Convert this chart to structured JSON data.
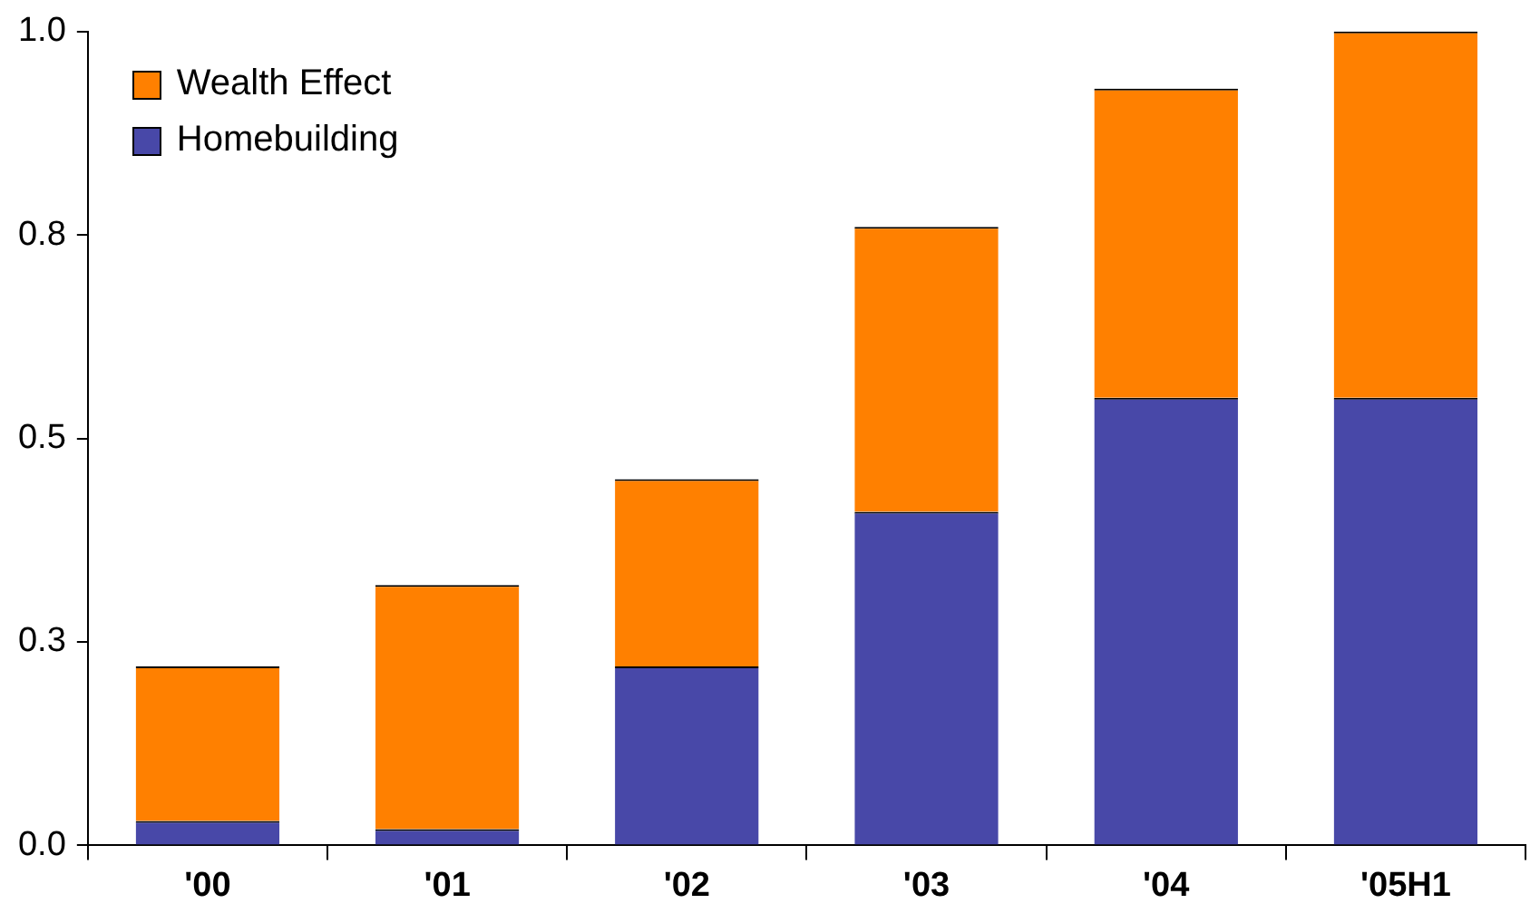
{
  "chart_data": {
    "type": "bar",
    "stacked": true,
    "categories": [
      "'00",
      "'01",
      "'02",
      "'03",
      "'04",
      "'05H1"
    ],
    "series": [
      {
        "name": "Homebuilding",
        "color": "#4848a8",
        "values": [
          0.03,
          0.02,
          0.22,
          0.41,
          0.55,
          0.55
        ]
      },
      {
        "name": "Wealth Effect",
        "color": "#ff8000",
        "values": [
          0.19,
          0.3,
          0.23,
          0.35,
          0.38,
          0.45
        ]
      }
    ],
    "ylim": [
      0,
      1
    ],
    "yticks": [
      {
        "value": 0,
        "label": "0.0"
      },
      {
        "value": 0.25,
        "label": "0.3"
      },
      {
        "value": 0.5,
        "label": "0.5"
      },
      {
        "value": 0.75,
        "label": "0.8"
      },
      {
        "value": 1,
        "label": "1.0"
      }
    ],
    "grid": false,
    "legend": "top left"
  }
}
